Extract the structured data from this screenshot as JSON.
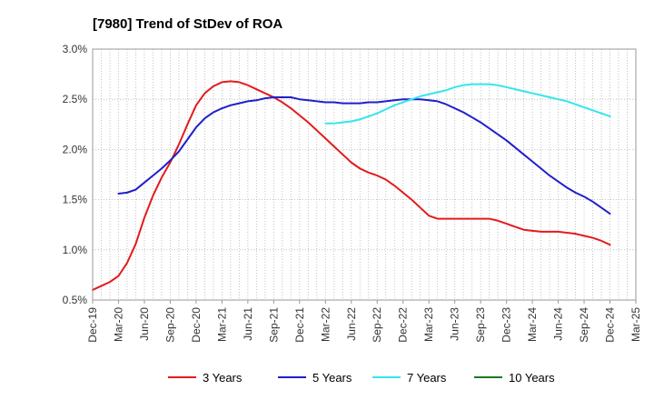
{
  "chart_data": {
    "type": "line",
    "title": "[7980]  Trend of StDev of ROA",
    "xlabel": "",
    "ylabel": "",
    "ylim": [
      0.5,
      3.0
    ],
    "y_ticks": [
      "0.5%",
      "1.0%",
      "1.5%",
      "2.0%",
      "2.5%",
      "3.0%"
    ],
    "y_tick_values": [
      0.5,
      1.0,
      1.5,
      2.0,
      2.5,
      3.0
    ],
    "x_ticks": [
      "Dec-19",
      "Mar-20",
      "Jun-20",
      "Sep-20",
      "Dec-20",
      "Mar-21",
      "Jun-21",
      "Sep-21",
      "Dec-21",
      "Mar-22",
      "Jun-22",
      "Sep-22",
      "Dec-22",
      "Mar-23",
      "Jun-23",
      "Sep-23",
      "Dec-23",
      "Mar-24",
      "Jun-24",
      "Sep-24",
      "Dec-24",
      "Mar-25"
    ],
    "grid": true,
    "legend_position": "bottom",
    "series": [
      {
        "name": "3 Years",
        "color": "#e31a1c",
        "x": [
          "Dec-19",
          "Jan-20",
          "Feb-20",
          "Mar-20",
          "Apr-20",
          "May-20",
          "Jun-20",
          "Jul-20",
          "Aug-20",
          "Sep-20",
          "Oct-20",
          "Nov-20",
          "Dec-20",
          "Jan-21",
          "Feb-21",
          "Mar-21",
          "Apr-21",
          "May-21",
          "Jun-21",
          "Jul-21",
          "Aug-21",
          "Sep-21",
          "Oct-21",
          "Nov-21",
          "Dec-21",
          "Jan-22",
          "Feb-22",
          "Mar-22",
          "Apr-22",
          "May-22",
          "Jun-22",
          "Jul-22",
          "Aug-22",
          "Sep-22",
          "Oct-22",
          "Nov-22",
          "Dec-22",
          "Jan-23",
          "Feb-23",
          "Mar-23",
          "Apr-23",
          "May-23",
          "Jun-23",
          "Jul-23",
          "Aug-23",
          "Sep-23",
          "Oct-23",
          "Nov-23",
          "Dec-23",
          "Jan-24",
          "Feb-24",
          "Mar-24",
          "Apr-24",
          "May-24",
          "Jun-24",
          "Jul-24",
          "Aug-24",
          "Sep-24",
          "Oct-24",
          "Nov-24",
          "Dec-24"
        ],
        "values": [
          0.6,
          0.64,
          0.68,
          0.74,
          0.87,
          1.06,
          1.32,
          1.54,
          1.72,
          1.87,
          2.05,
          2.25,
          2.44,
          2.56,
          2.63,
          2.67,
          2.68,
          2.67,
          2.64,
          2.6,
          2.56,
          2.52,
          2.47,
          2.41,
          2.34,
          2.27,
          2.19,
          2.11,
          2.03,
          1.95,
          1.87,
          1.81,
          1.77,
          1.74,
          1.7,
          1.64,
          1.57,
          1.5,
          1.42,
          1.34,
          1.31,
          1.31,
          1.31,
          1.31,
          1.31,
          1.31,
          1.31,
          1.29,
          1.26,
          1.23,
          1.2,
          1.19,
          1.18,
          1.18,
          1.18,
          1.17,
          1.16,
          1.14,
          1.12,
          1.09,
          1.05
        ]
      },
      {
        "name": "5 Years",
        "color": "#1f1fcc",
        "x": [
          "Mar-20",
          "Apr-20",
          "May-20",
          "Jun-20",
          "Jul-20",
          "Aug-20",
          "Sep-20",
          "Oct-20",
          "Nov-20",
          "Dec-20",
          "Jan-21",
          "Feb-21",
          "Mar-21",
          "Apr-21",
          "May-21",
          "Jun-21",
          "Jul-21",
          "Aug-21",
          "Sep-21",
          "Oct-21",
          "Nov-21",
          "Dec-21",
          "Jan-22",
          "Feb-22",
          "Mar-22",
          "Apr-22",
          "May-22",
          "Jun-22",
          "Jul-22",
          "Aug-22",
          "Sep-22",
          "Oct-22",
          "Nov-22",
          "Dec-22",
          "Jan-23",
          "Feb-23",
          "Mar-23",
          "Apr-23",
          "May-23",
          "Jun-23",
          "Jul-23",
          "Aug-23",
          "Sep-23",
          "Oct-23",
          "Nov-23",
          "Dec-23",
          "Jan-24",
          "Feb-24",
          "Mar-24",
          "Apr-24",
          "May-24",
          "Jun-24",
          "Jul-24",
          "Aug-24",
          "Sep-24",
          "Oct-24",
          "Nov-24",
          "Dec-24"
        ],
        "values": [
          1.56,
          1.57,
          1.6,
          1.67,
          1.74,
          1.81,
          1.89,
          1.98,
          2.1,
          2.22,
          2.31,
          2.37,
          2.41,
          2.44,
          2.46,
          2.48,
          2.49,
          2.51,
          2.52,
          2.52,
          2.52,
          2.5,
          2.49,
          2.48,
          2.47,
          2.47,
          2.46,
          2.46,
          2.46,
          2.47,
          2.47,
          2.48,
          2.49,
          2.5,
          2.5,
          2.5,
          2.49,
          2.48,
          2.45,
          2.41,
          2.37,
          2.32,
          2.27,
          2.21,
          2.15,
          2.09,
          2.02,
          1.95,
          1.88,
          1.81,
          1.74,
          1.68,
          1.62,
          1.57,
          1.53,
          1.48,
          1.42,
          1.36
        ]
      },
      {
        "name": "7 Years",
        "color": "#33e6ee",
        "x": [
          "Mar-22",
          "Apr-22",
          "May-22",
          "Jun-22",
          "Jul-22",
          "Aug-22",
          "Sep-22",
          "Oct-22",
          "Nov-22",
          "Dec-22",
          "Jan-23",
          "Feb-23",
          "Mar-23",
          "Apr-23",
          "May-23",
          "Jun-23",
          "Jul-23",
          "Aug-23",
          "Sep-23",
          "Oct-23",
          "Nov-23",
          "Dec-23",
          "Jan-24",
          "Feb-24",
          "Mar-24",
          "Apr-24",
          "May-24",
          "Jun-24",
          "Jul-24",
          "Aug-24",
          "Sep-24",
          "Oct-24",
          "Nov-24",
          "Dec-24"
        ],
        "values": [
          2.26,
          2.26,
          2.27,
          2.28,
          2.3,
          2.33,
          2.36,
          2.4,
          2.44,
          2.47,
          2.5,
          2.53,
          2.55,
          2.57,
          2.59,
          2.62,
          2.64,
          2.65,
          2.65,
          2.65,
          2.64,
          2.62,
          2.6,
          2.58,
          2.56,
          2.54,
          2.52,
          2.5,
          2.48,
          2.45,
          2.42,
          2.39,
          2.36,
          2.33
        ]
      },
      {
        "name": "10 Years",
        "color": "#1a7a1a",
        "x": [],
        "values": []
      }
    ]
  }
}
